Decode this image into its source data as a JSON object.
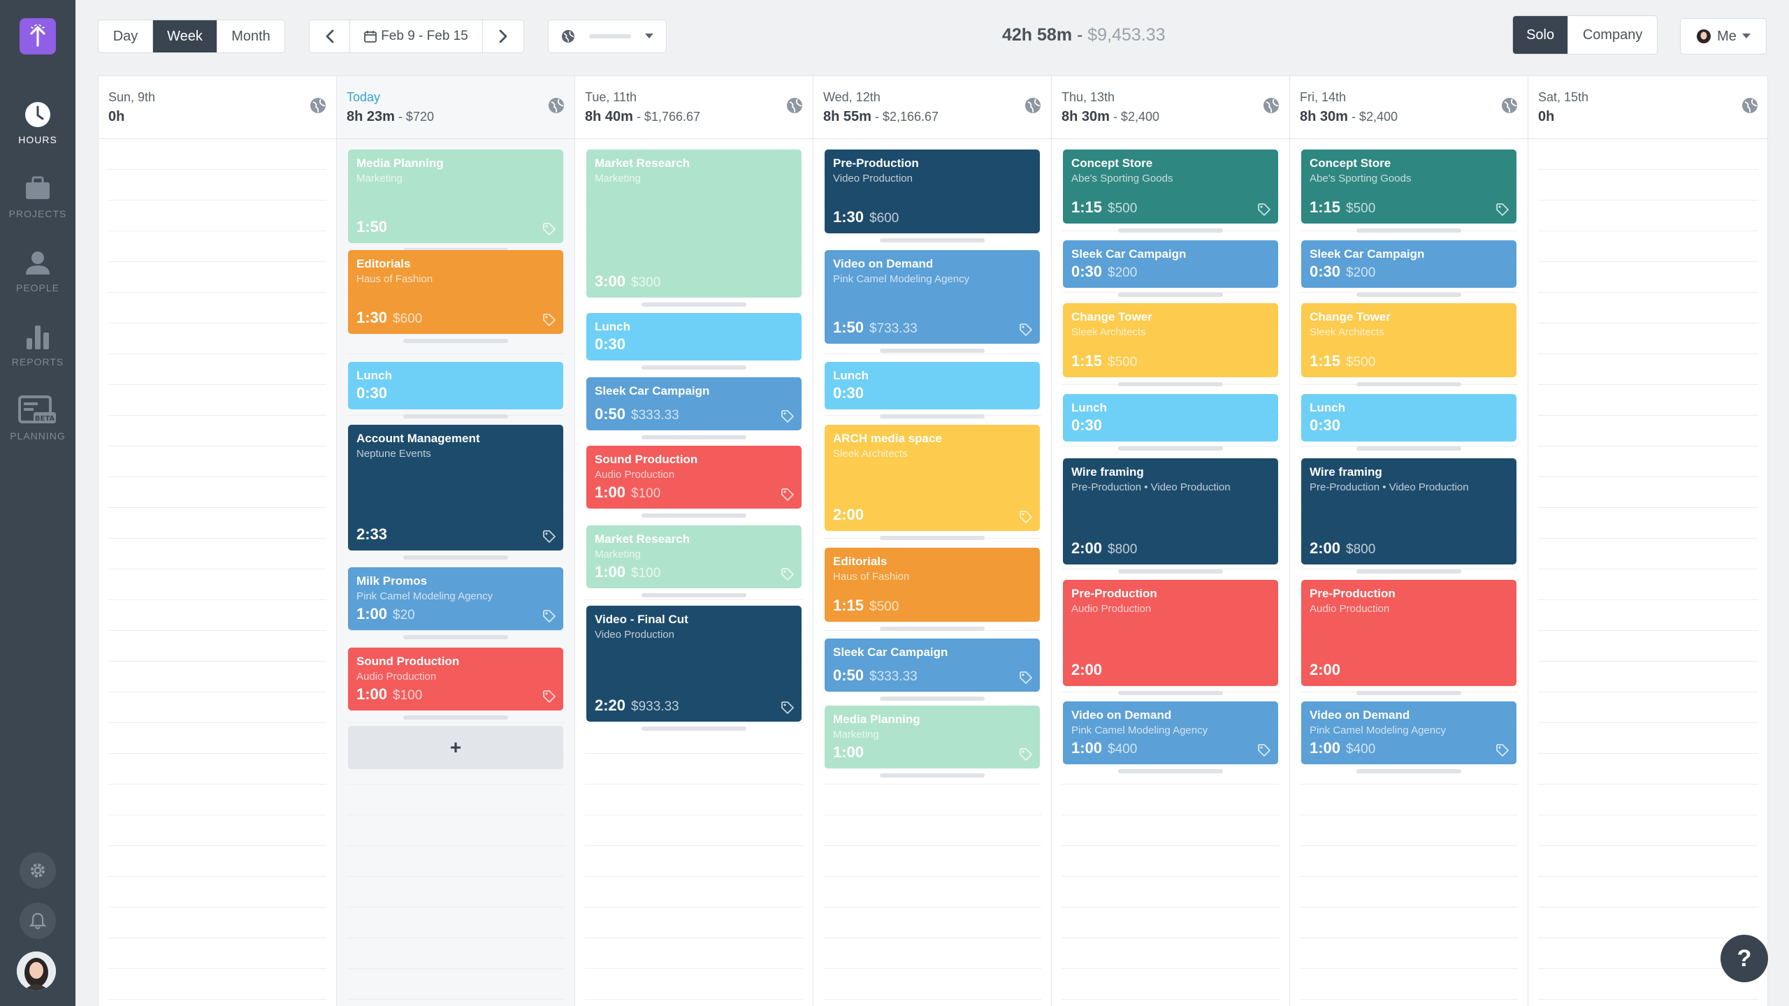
{
  "sidebar": {
    "nav": [
      {
        "key": "hours",
        "label": "HOURS",
        "icon": "clock-icon",
        "active": true
      },
      {
        "key": "projects",
        "label": "PROJECTS",
        "icon": "briefcase-icon",
        "active": false
      },
      {
        "key": "people",
        "label": "PEOPLE",
        "icon": "person-icon",
        "active": false
      },
      {
        "key": "reports",
        "label": "REPORTS",
        "icon": "bar-chart-icon",
        "active": false
      },
      {
        "key": "planning",
        "label": "PLANNING",
        "icon": "planning-beta-icon",
        "badge": "BETA",
        "active": false
      }
    ]
  },
  "toolbar": {
    "view_tabs": [
      {
        "label": "Day",
        "active": false
      },
      {
        "label": "Week",
        "active": true
      },
      {
        "label": "Month",
        "active": false
      }
    ],
    "date_range": "Feb 9 - Feb 15",
    "summary": {
      "hours": "42h 58m",
      "separator": " - ",
      "money": "$9,453.33"
    },
    "mode_tabs": [
      {
        "label": "Solo",
        "active": true
      },
      {
        "label": "Company",
        "active": false
      }
    ],
    "user_menu": "Me"
  },
  "days": [
    {
      "name": "Sun, 9th",
      "total": "0h",
      "money": "",
      "today": false,
      "entries": []
    },
    {
      "name": "Today",
      "total": "8h 23m",
      "money": " - $720",
      "today": true,
      "entries": [
        {
          "title": "Media Planning",
          "sub": "Marketing",
          "dur": "1:50",
          "amt": "",
          "color": "mint",
          "tag": true
        },
        {
          "title": "Editorials",
          "sub": "Haus of Fashion",
          "dur": "1:30",
          "amt": "$600",
          "color": "orange",
          "tag": true
        },
        {
          "title": "Lunch",
          "sub": "",
          "dur": "0:30",
          "amt": "",
          "color": "sky",
          "tag": false
        },
        {
          "title": "Account Management",
          "sub": "Neptune Events",
          "dur": "2:33",
          "amt": "",
          "color": "navy",
          "tag": true
        },
        {
          "title": "Milk Promos",
          "sub": "Pink Camel Modeling Agency",
          "dur": "1:00",
          "amt": "$20",
          "color": "blue",
          "tag": true
        },
        {
          "title": "Sound Production",
          "sub": "Audio Production",
          "dur": "1:00",
          "amt": "$100",
          "color": "red",
          "tag": true
        }
      ],
      "add_label": "+"
    },
    {
      "name": "Tue, 11th",
      "total": "8h 40m",
      "money": " - $1,766.67",
      "today": false,
      "entries": [
        {
          "title": "Market Research",
          "sub": "Marketing",
          "dur": "3:00",
          "amt": "$300",
          "color": "mint",
          "tag": false
        },
        {
          "title": "Lunch",
          "sub": "",
          "dur": "0:30",
          "amt": "",
          "color": "sky",
          "tag": false
        },
        {
          "title": "Sleek Car Campaign",
          "sub": "",
          "dur": "0:50",
          "amt": "$333.33",
          "color": "blue",
          "tag": true
        },
        {
          "title": "Sound Production",
          "sub": "Audio Production",
          "dur": "1:00",
          "amt": "$100",
          "color": "red",
          "tag": true
        },
        {
          "title": "Market Research",
          "sub": "Marketing",
          "dur": "1:00",
          "amt": "$100",
          "color": "mint",
          "tag": true
        },
        {
          "title": "Video - Final Cut",
          "sub": "Video Production",
          "dur": "2:20",
          "amt": "$933.33",
          "color": "navy",
          "tag": true
        }
      ]
    },
    {
      "name": "Wed, 12th",
      "total": "8h 55m",
      "money": " - $2,166.67",
      "today": false,
      "entries": [
        {
          "title": "Pre-Production",
          "sub": "Video Production",
          "dur": "1:30",
          "amt": "$600",
          "color": "navy",
          "tag": false
        },
        {
          "title": "Video on Demand",
          "sub": "Pink Camel Modeling Agency",
          "dur": "1:50",
          "amt": "$733.33",
          "color": "blue",
          "tag": true
        },
        {
          "title": "Lunch",
          "sub": "",
          "dur": "0:30",
          "amt": "",
          "color": "sky",
          "tag": false
        },
        {
          "title": "ARCH media space",
          "sub": "Sleek Architects",
          "dur": "2:00",
          "amt": "",
          "color": "yellow",
          "tag": true
        },
        {
          "title": "Editorials",
          "sub": "Haus of Fashion",
          "dur": "1:15",
          "amt": "$500",
          "color": "orange",
          "tag": false
        },
        {
          "title": "Sleek Car Campaign",
          "sub": "",
          "dur": "0:50",
          "amt": "$333.33",
          "color": "blue",
          "tag": true
        },
        {
          "title": "Media Planning",
          "sub": "Marketing",
          "dur": "1:00",
          "amt": "",
          "color": "mint",
          "tag": true
        }
      ]
    },
    {
      "name": "Thu, 13th",
      "total": "8h 30m",
      "money": " - $2,400",
      "today": false,
      "entries": [
        {
          "title": "Concept Store",
          "sub": "Abe's Sporting Goods",
          "dur": "1:15",
          "amt": "$500",
          "color": "teal",
          "tag": true
        },
        {
          "title": "Sleek Car Campaign",
          "sub": "",
          "dur": "0:30",
          "amt": "$200",
          "color": "blue",
          "tag": false
        },
        {
          "title": "Change Tower",
          "sub": "Sleek Architects",
          "dur": "1:15",
          "amt": "$500",
          "color": "yellow",
          "tag": false
        },
        {
          "title": "Lunch",
          "sub": "",
          "dur": "0:30",
          "amt": "",
          "color": "sky",
          "tag": false
        },
        {
          "title": "Wire framing",
          "sub": "Pre-Production • Video Production",
          "dur": "2:00",
          "amt": "$800",
          "color": "navy",
          "tag": false
        },
        {
          "title": "Pre-Production",
          "sub": "Audio Production",
          "dur": "2:00",
          "amt": "",
          "color": "red",
          "tag": false
        },
        {
          "title": "Video on Demand",
          "sub": "Pink Camel Modeling Agency",
          "dur": "1:00",
          "amt": "$400",
          "color": "blue",
          "tag": true
        }
      ]
    },
    {
      "name": "Fri, 14th",
      "total": "8h 30m",
      "money": " - $2,400",
      "today": false,
      "entries": [
        {
          "title": "Concept Store",
          "sub": "Abe's Sporting Goods",
          "dur": "1:15",
          "amt": "$500",
          "color": "teal",
          "tag": true
        },
        {
          "title": "Sleek Car Campaign",
          "sub": "",
          "dur": "0:30",
          "amt": "$200",
          "color": "blue",
          "tag": false
        },
        {
          "title": "Change Tower",
          "sub": "Sleek Architects",
          "dur": "1:15",
          "amt": "$500",
          "color": "yellow",
          "tag": false
        },
        {
          "title": "Lunch",
          "sub": "",
          "dur": "0:30",
          "amt": "",
          "color": "sky",
          "tag": false
        },
        {
          "title": "Wire framing",
          "sub": "Pre-Production • Video Production",
          "dur": "2:00",
          "amt": "$800",
          "color": "navy",
          "tag": false
        },
        {
          "title": "Pre-Production",
          "sub": "Audio Production",
          "dur": "2:00",
          "amt": "",
          "color": "red",
          "tag": false
        },
        {
          "title": "Video on Demand",
          "sub": "Pink Camel Modeling Agency",
          "dur": "1:00",
          "amt": "$400",
          "color": "blue",
          "tag": true
        }
      ]
    },
    {
      "name": "Sat, 15th",
      "total": "0h",
      "money": "",
      "today": false,
      "entries": []
    }
  ],
  "help_label": "?",
  "colors": {
    "mint": "#b0e3cb",
    "orange": "#f29a35",
    "sky": "#6fd0f7",
    "navy": "#1d4b6c",
    "blue": "#5ba0d6",
    "red": "#f45b5b",
    "yellow": "#fdcb4d",
    "teal": "#2f8781",
    "sidebar": "#3c4650",
    "accent": "#8f5fe6",
    "today_text": "#2fa6d8"
  }
}
